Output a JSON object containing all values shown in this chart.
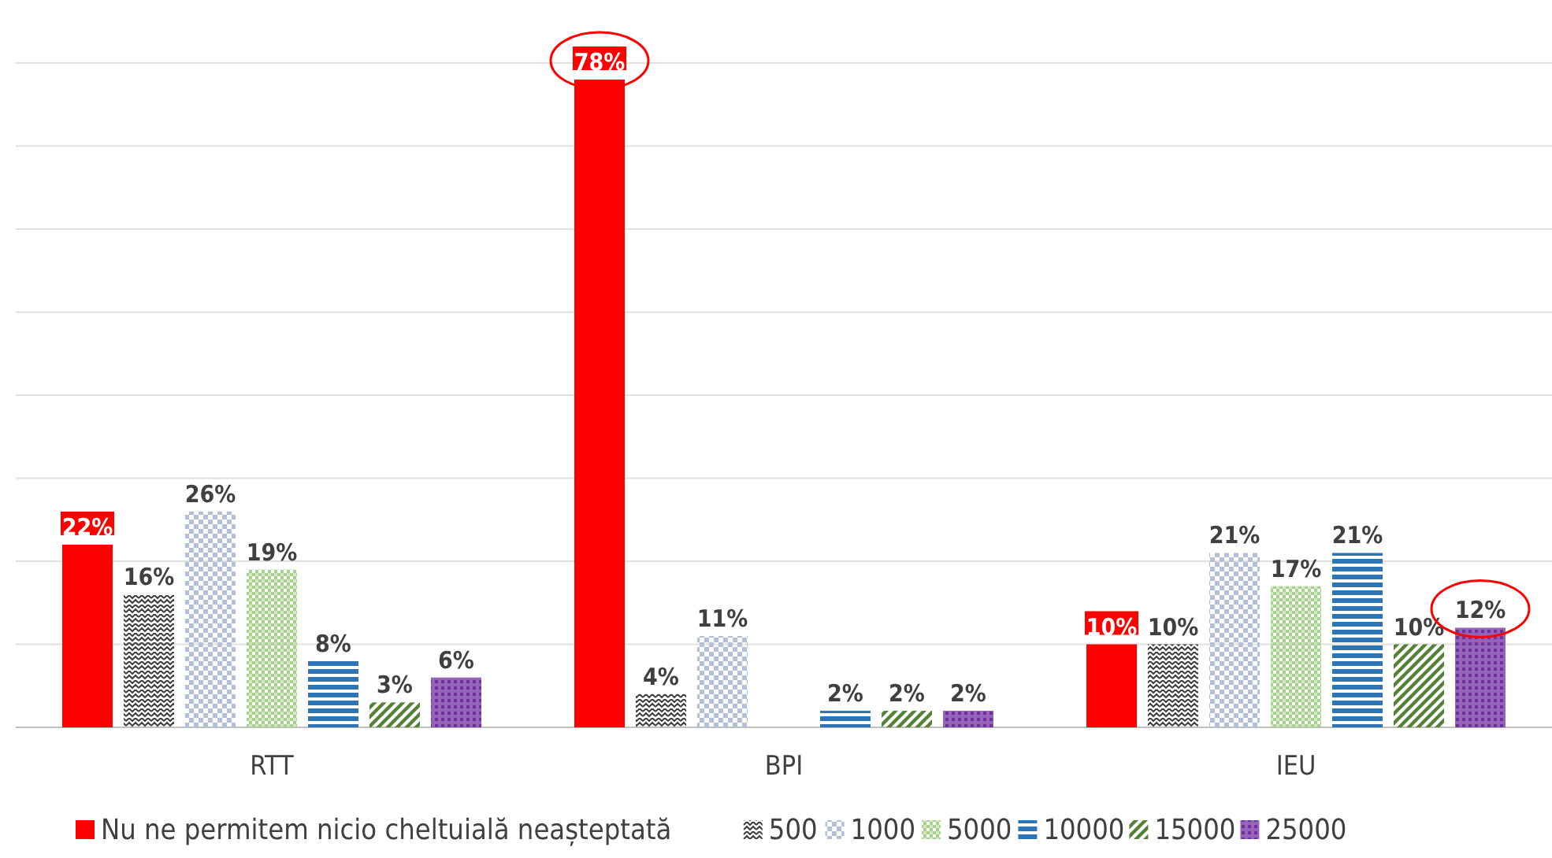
{
  "chart_data": {
    "type": "bar",
    "categories": [
      "RTT",
      "BPI",
      "IEU"
    ],
    "series": [
      {
        "name": "Nu ne permitem nicio cheltuială neașteptată",
        "color": "#ff0000",
        "values": [
          22,
          78,
          10
        ],
        "value_labels": [
          "22%",
          "78%",
          "10%"
        ]
      },
      {
        "name": "500",
        "color": "#404040",
        "values": [
          16,
          4,
          10
        ],
        "value_labels": [
          "16%",
          "4%",
          "10%"
        ]
      },
      {
        "name": "1000",
        "color": "#b4c0d8",
        "values": [
          26,
          11,
          21
        ],
        "value_labels": [
          "26%",
          "11%",
          "21%"
        ]
      },
      {
        "name": "5000",
        "color": "#a9d18e",
        "values": [
          19,
          null,
          17
        ],
        "value_labels": [
          "19%",
          null,
          "17%"
        ]
      },
      {
        "name": "10000",
        "color": "#2e75b6",
        "values": [
          8,
          2,
          21
        ],
        "value_labels": [
          "8%",
          "2%",
          "21%"
        ]
      },
      {
        "name": "15000",
        "color": "#548235",
        "values": [
          3,
          2,
          10
        ],
        "value_labels": [
          "3%",
          "2%",
          "10%"
        ]
      },
      {
        "name": "25000",
        "color": "#7030a0",
        "values": [
          6,
          2,
          12
        ],
        "value_labels": [
          "6%",
          "2%",
          "12%"
        ]
      }
    ],
    "ylim": [
      0,
      80
    ],
    "yticks": [
      {
        "value": 0,
        "label": null
      },
      {
        "value": 10,
        "label": null
      },
      {
        "value": 20,
        "label": null
      },
      {
        "value": 30,
        "label": null
      },
      {
        "value": 40,
        "label": null
      },
      {
        "value": 50,
        "label": null
      },
      {
        "value": 60,
        "label": null
      },
      {
        "value": 70,
        "label": null
      },
      {
        "value": 80,
        "label": null
      }
    ],
    "tick_labels": "x",
    "grid": "y",
    "legend": "bottom"
  }
}
